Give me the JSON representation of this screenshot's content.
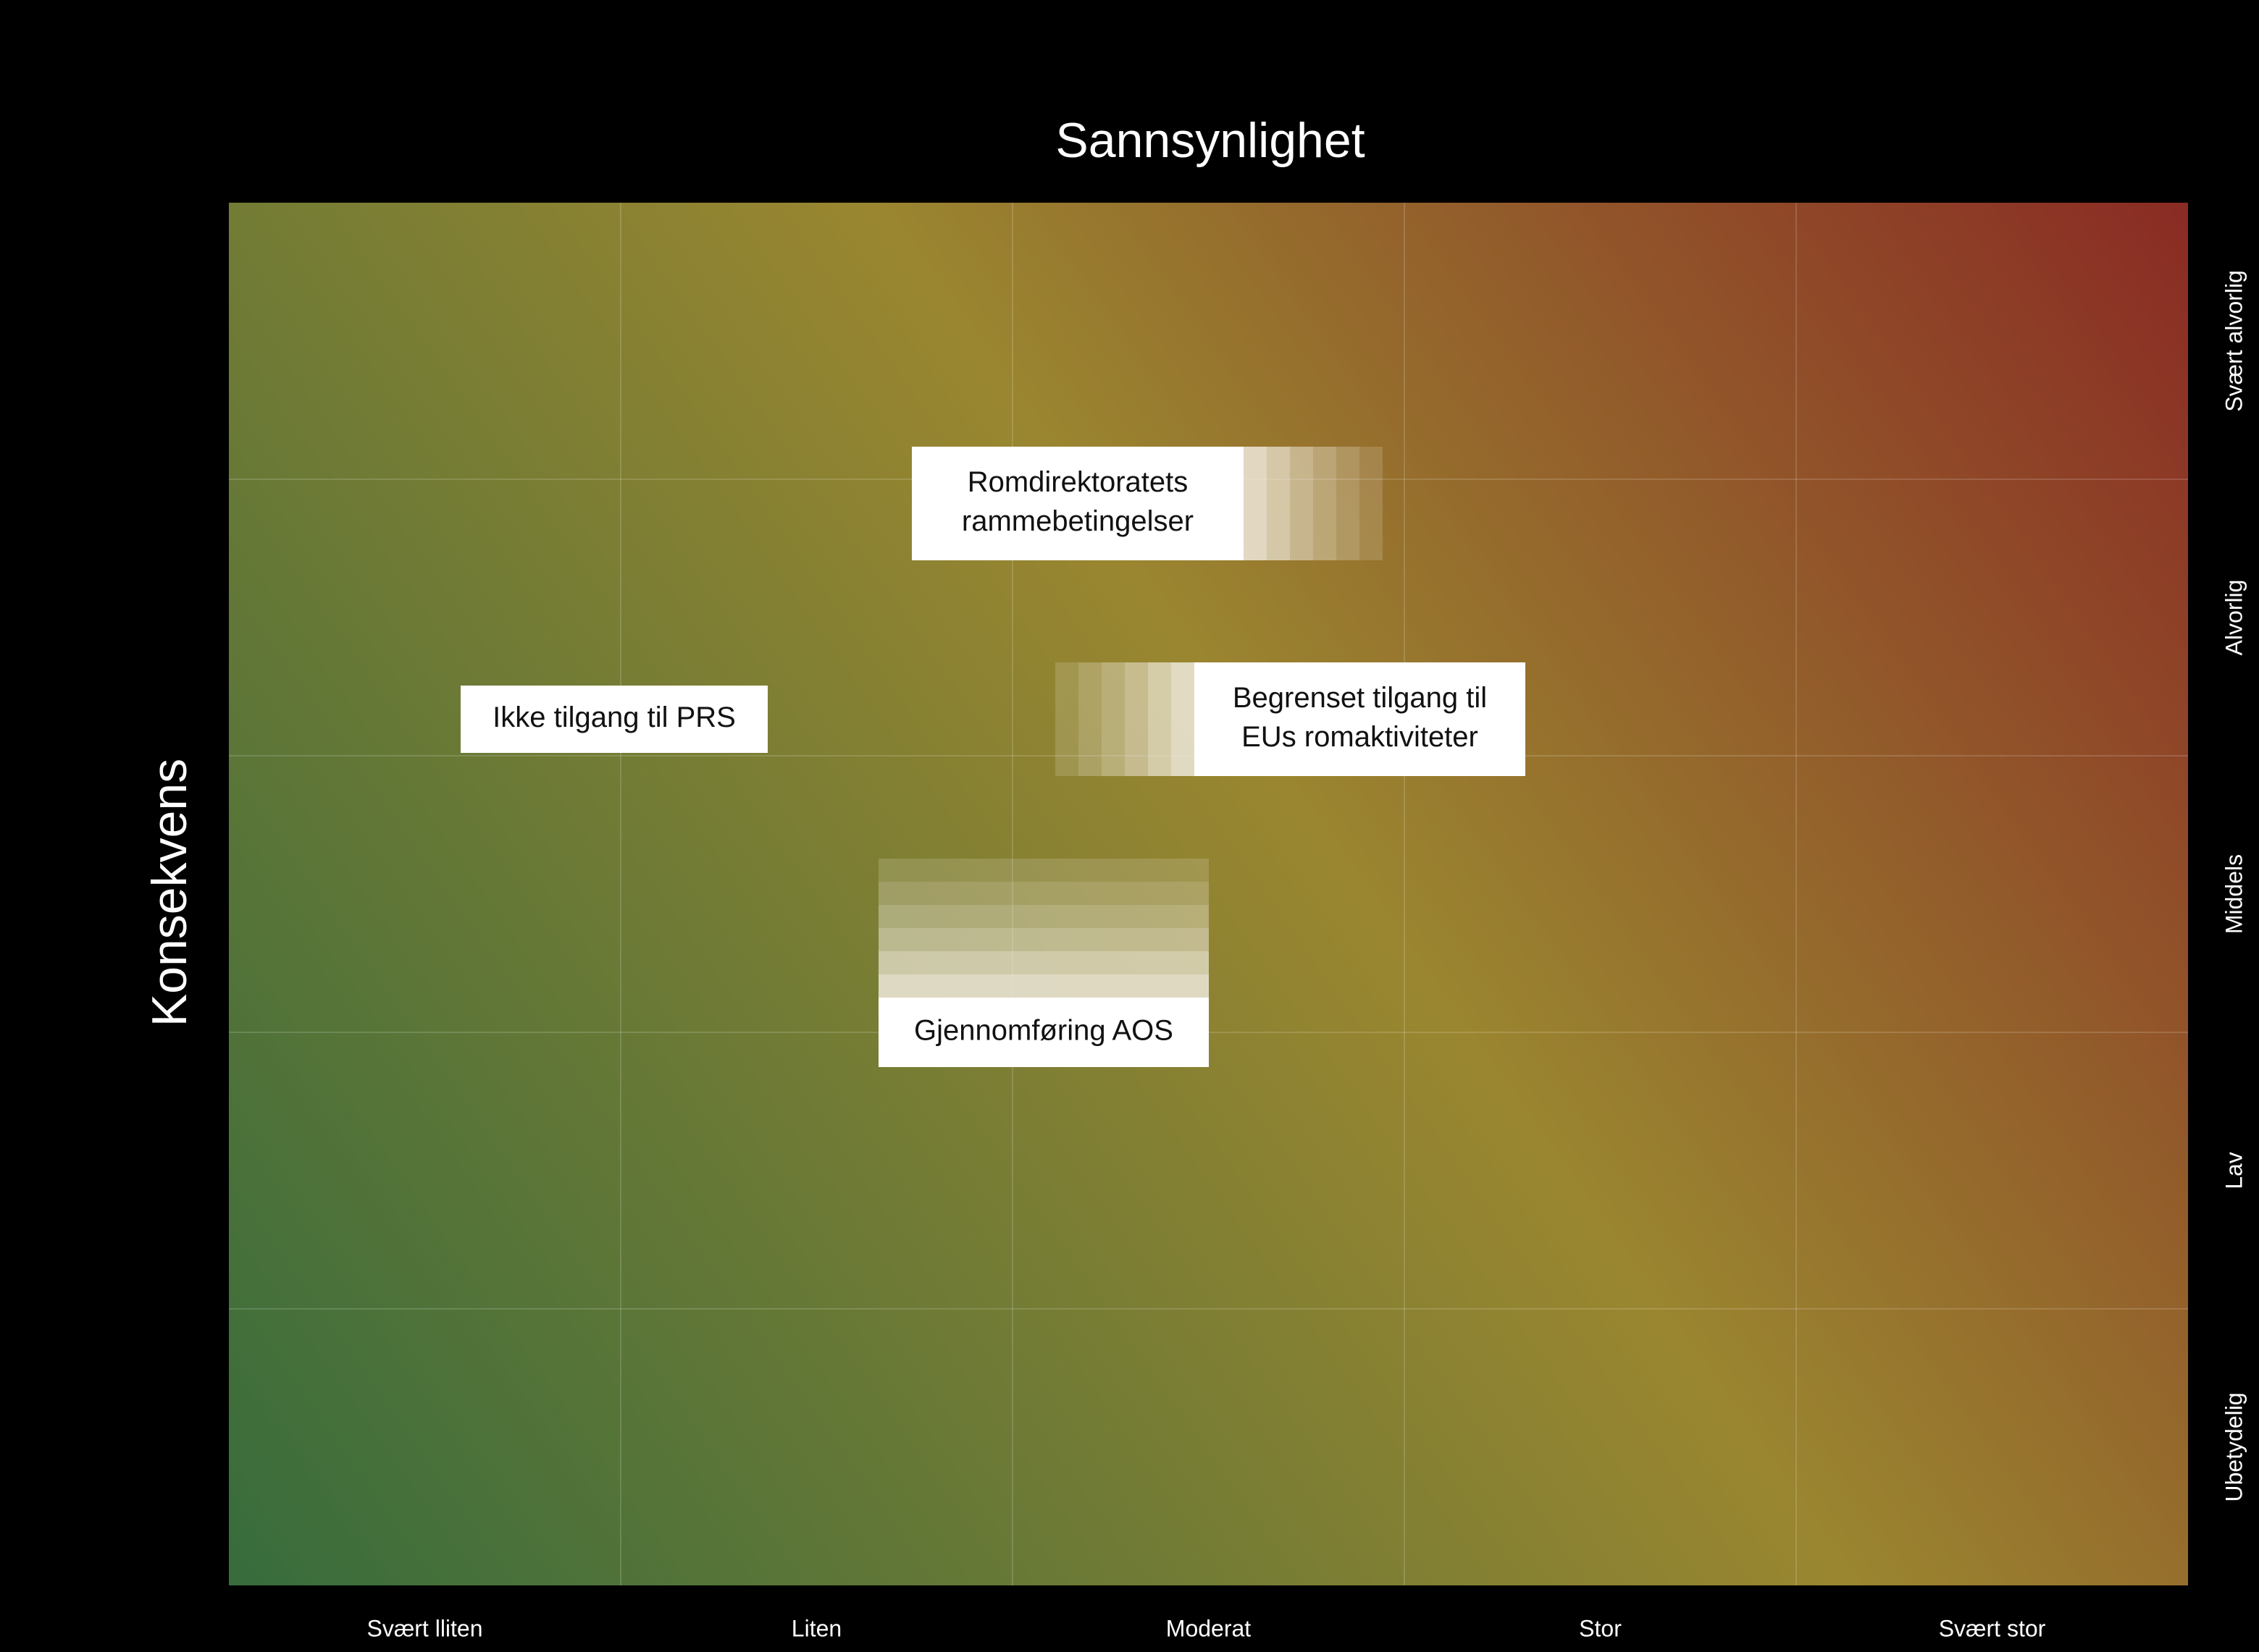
{
  "header": {
    "x_title": "Sannsynlighet",
    "y_title": "Konsekvens"
  },
  "columns": [
    "Svært lliten",
    "Liten",
    "Moderat",
    "Stor",
    "Svært stor"
  ],
  "rows": [
    "Svært alvorlig",
    "Alvorlig",
    "Middels",
    "Lav",
    "Ubetydelig"
  ],
  "items": [
    {
      "lines": [
        "Romdirektoratets",
        "rammebetingelser"
      ]
    },
    {
      "lines": [
        "Ikke tilgang til PRS"
      ]
    },
    {
      "lines": [
        "Begrenset tilgang til",
        "EUs romaktiviteter"
      ]
    },
    {
      "lines": [
        "Gjennomføring AOS"
      ]
    }
  ]
}
